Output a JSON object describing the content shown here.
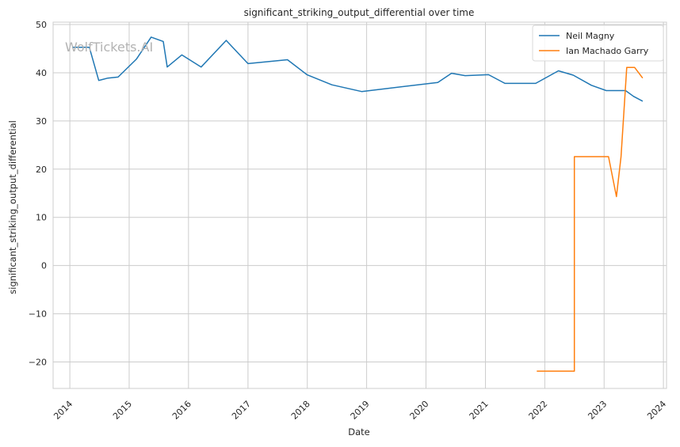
{
  "chart_data": {
    "type": "line",
    "title": "significant_striking_output_differential over time",
    "xlabel": "Date",
    "ylabel": "significant_striking_output_differential",
    "watermark": "WolfTickets.AI",
    "xlim": [
      "2013-09-20",
      "2024-01-20"
    ],
    "ylim": [
      -25.5,
      50.5
    ],
    "x_ticks": [
      "2014",
      "2015",
      "2016",
      "2017",
      "2018",
      "2019",
      "2020",
      "2021",
      "2022",
      "2023",
      "2024"
    ],
    "y_ticks": [
      -20,
      -10,
      0,
      10,
      20,
      30,
      40,
      50
    ],
    "grid": true,
    "legend_position": "top-right",
    "series": [
      {
        "name": "Neil Magny",
        "color": "#1f77b4",
        "points": [
          {
            "x": "2014-01-15",
            "y": 45.3
          },
          {
            "x": "2014-05-01",
            "y": 45.3
          },
          {
            "x": "2014-06-28",
            "y": 38.4
          },
          {
            "x": "2014-08-23",
            "y": 38.9
          },
          {
            "x": "2014-10-25",
            "y": 39.1
          },
          {
            "x": "2015-02-14",
            "y": 42.8
          },
          {
            "x": "2015-05-16",
            "y": 47.4
          },
          {
            "x": "2015-07-30",
            "y": 46.5
          },
          {
            "x": "2015-08-23",
            "y": 41.2
          },
          {
            "x": "2015-11-21",
            "y": 43.7
          },
          {
            "x": "2016-03-19",
            "y": 41.2
          },
          {
            "x": "2016-08-20",
            "y": 46.7
          },
          {
            "x": "2017-01-01",
            "y": 41.9
          },
          {
            "x": "2017-09-01",
            "y": 42.7
          },
          {
            "x": "2017-12-30",
            "y": 39.6
          },
          {
            "x": "2018-06-01",
            "y": 37.5
          },
          {
            "x": "2018-12-01",
            "y": 36.1
          },
          {
            "x": "2020-03-14",
            "y": 38.0
          },
          {
            "x": "2020-06-06",
            "y": 39.9
          },
          {
            "x": "2020-08-29",
            "y": 39.4
          },
          {
            "x": "2021-01-20",
            "y": 39.6
          },
          {
            "x": "2021-05-01",
            "y": 37.8
          },
          {
            "x": "2021-11-06",
            "y": 37.8
          },
          {
            "x": "2022-03-26",
            "y": 40.4
          },
          {
            "x": "2022-06-25",
            "y": 39.5
          },
          {
            "x": "2022-10-15",
            "y": 37.4
          },
          {
            "x": "2023-01-14",
            "y": 36.3
          },
          {
            "x": "2023-05-13",
            "y": 36.3
          },
          {
            "x": "2023-07-01",
            "y": 35.1
          },
          {
            "x": "2023-08-26",
            "y": 34.1
          }
        ]
      },
      {
        "name": "Ian Machado Garry",
        "color": "#ff7f0e",
        "points": [
          {
            "x": "2021-11-13",
            "y": -21.9
          },
          {
            "x": "2022-07-02",
            "y": -21.9
          },
          {
            "x": "2022-07-02",
            "y": 22.6
          },
          {
            "x": "2023-01-28",
            "y": 22.6
          },
          {
            "x": "2023-03-18",
            "y": 14.3
          },
          {
            "x": "2023-04-15",
            "y": 22.6
          },
          {
            "x": "2023-05-20",
            "y": 41.1
          },
          {
            "x": "2023-07-08",
            "y": 41.1
          },
          {
            "x": "2023-08-26",
            "y": 38.9
          }
        ]
      }
    ]
  }
}
